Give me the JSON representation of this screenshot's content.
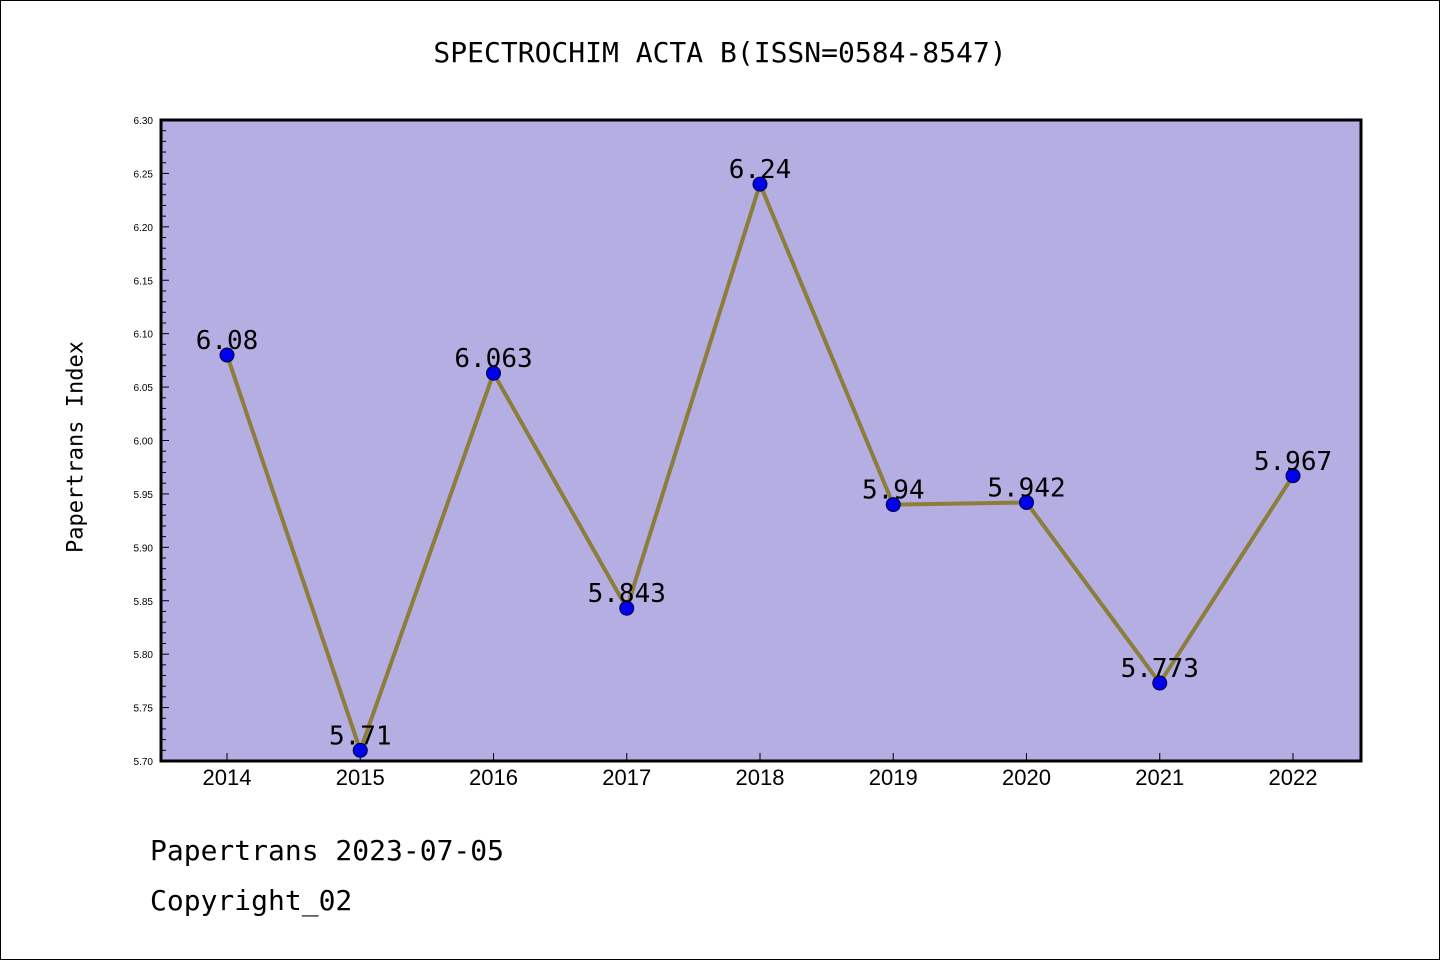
{
  "chart_data": {
    "type": "line",
    "title": "SPECTROCHIM ACTA B(ISSN=0584-8547)",
    "xlabel": "",
    "ylabel": "Papertrans Index",
    "categories": [
      "2014",
      "2015",
      "2016",
      "2017",
      "2018",
      "2019",
      "2020",
      "2021",
      "2022"
    ],
    "values": [
      6.08,
      5.71,
      6.063,
      5.843,
      6.24,
      5.94,
      5.942,
      5.773,
      5.967
    ],
    "value_labels": [
      "6.08",
      "5.71",
      "6.063",
      "5.843",
      "6.24",
      "5.94",
      "5.942",
      "5.773",
      "5.967"
    ],
    "ylim": [
      5.7,
      6.3
    ],
    "yticks": [
      "5.70",
      "5.75",
      "5.80",
      "5.85",
      "5.90",
      "5.95",
      "6.00",
      "6.05",
      "6.10",
      "6.15",
      "6.20",
      "6.25",
      "6.30"
    ],
    "grid": false,
    "colors": {
      "plot_background": "#b5aee2",
      "line": "#8b7d3a",
      "marker": "#0000ee"
    }
  },
  "footer": {
    "line1": "Papertrans 2023-07-05",
    "line2": "Copyright_02"
  }
}
